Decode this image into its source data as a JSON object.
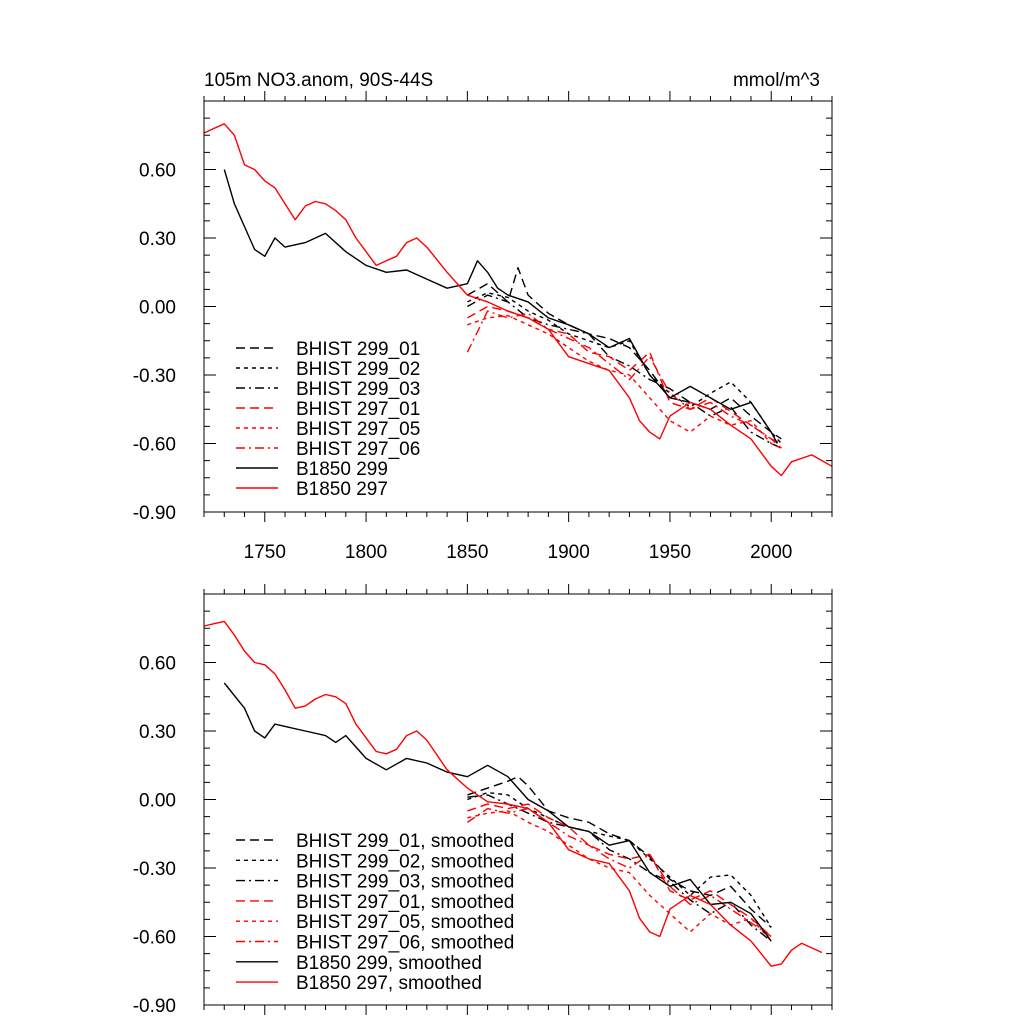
{
  "chart_data": [
    {
      "type": "line",
      "title": "105m NO3.anom, 90S-44S",
      "units": "mmol/m^3",
      "xlabel": "",
      "ylabel": "",
      "xlim": [
        1720,
        2030
      ],
      "ylim": [
        -0.9,
        0.9
      ],
      "xticks": [
        1750,
        1800,
        1850,
        1900,
        1950,
        2000
      ],
      "xtick_labels": [
        "1750",
        "1800",
        "1850",
        "1900",
        "1950",
        "2000"
      ],
      "yticks": [
        0.6,
        0.3,
        0.0,
        -0.3,
        -0.6,
        -0.9
      ],
      "ytick_labels": [
        "0.60",
        "0.30",
        "0.00",
        "-0.30",
        "-0.60",
        "-0.90"
      ],
      "legend_position": "lower-left",
      "series": [
        {
          "name": "BHIST 299_01",
          "color": "#000000",
          "dash": "long-dash",
          "x": [
            1850,
            1860,
            1870,
            1875,
            1880,
            1890,
            1900,
            1910,
            1920,
            1930,
            1940,
            1950,
            1960,
            1970,
            1980,
            1990,
            2000,
            2005
          ],
          "y": [
            0.05,
            0.1,
            0.02,
            0.17,
            0.05,
            -0.03,
            -0.08,
            -0.12,
            -0.14,
            -0.18,
            -0.28,
            -0.4,
            -0.42,
            -0.45,
            -0.4,
            -0.48,
            -0.55,
            -0.58
          ]
        },
        {
          "name": "BHIST 299_02",
          "color": "#000000",
          "dash": "short-dash",
          "x": [
            1850,
            1860,
            1870,
            1880,
            1890,
            1900,
            1910,
            1920,
            1930,
            1940,
            1950,
            1960,
            1970,
            1980,
            1990,
            2000,
            2005
          ],
          "y": [
            0.02,
            0.06,
            0.04,
            -0.02,
            -0.06,
            -0.12,
            -0.15,
            -0.18,
            -0.15,
            -0.3,
            -0.38,
            -0.44,
            -0.38,
            -0.33,
            -0.42,
            -0.55,
            -0.6
          ]
        },
        {
          "name": "BHIST 299_03",
          "color": "#000000",
          "dash": "dash-dot",
          "x": [
            1850,
            1860,
            1870,
            1880,
            1890,
            1900,
            1910,
            1920,
            1930,
            1940,
            1950,
            1960,
            1970,
            1980,
            1990,
            2000,
            2005
          ],
          "y": [
            0.0,
            0.05,
            0.02,
            -0.05,
            -0.08,
            -0.1,
            -0.12,
            -0.22,
            -0.26,
            -0.32,
            -0.36,
            -0.42,
            -0.48,
            -0.44,
            -0.55,
            -0.6,
            -0.62
          ]
        },
        {
          "name": "BHIST 297_01",
          "color": "#ff0000",
          "dash": "long-dash",
          "x": [
            1850,
            1860,
            1870,
            1880,
            1890,
            1900,
            1910,
            1920,
            1930,
            1940,
            1950,
            1960,
            1970,
            1980,
            1990,
            2000,
            2005
          ],
          "y": [
            -0.05,
            0.0,
            -0.02,
            -0.05,
            -0.1,
            -0.12,
            -0.2,
            -0.22,
            -0.28,
            -0.2,
            -0.42,
            -0.45,
            -0.4,
            -0.46,
            -0.52,
            -0.58,
            -0.62
          ]
        },
        {
          "name": "BHIST 297_05",
          "color": "#ff0000",
          "dash": "short-dash",
          "x": [
            1850,
            1860,
            1870,
            1880,
            1890,
            1900,
            1910,
            1920,
            1930,
            1940,
            1950,
            1960,
            1970,
            1980,
            1990,
            2000,
            2005
          ],
          "y": [
            -0.08,
            -0.05,
            -0.04,
            -0.08,
            -0.12,
            -0.18,
            -0.24,
            -0.28,
            -0.3,
            -0.4,
            -0.5,
            -0.55,
            -0.48,
            -0.52,
            -0.5,
            -0.6,
            -0.62
          ]
        },
        {
          "name": "BHIST 297_06",
          "color": "#ff0000",
          "dash": "dash-dot",
          "x": [
            1850,
            1860,
            1870,
            1880,
            1890,
            1900,
            1910,
            1920,
            1930,
            1940,
            1950,
            1960,
            1970,
            1980,
            1990,
            2000,
            2005
          ],
          "y": [
            -0.2,
            -0.02,
            -0.05,
            -0.03,
            -0.1,
            -0.14,
            -0.18,
            -0.25,
            -0.32,
            -0.22,
            -0.38,
            -0.45,
            -0.42,
            -0.48,
            -0.52,
            -0.58,
            -0.6
          ]
        },
        {
          "name": "B1850 299",
          "color": "#000000",
          "dash": "solid",
          "x": [
            1730,
            1735,
            1740,
            1745,
            1750,
            1755,
            1760,
            1770,
            1780,
            1790,
            1800,
            1810,
            1820,
            1830,
            1840,
            1850,
            1855,
            1860,
            1865,
            1870,
            1880,
            1890,
            1900,
            1910,
            1920,
            1930,
            1940,
            1950,
            1960,
            1970,
            1980,
            1990,
            2000,
            2003
          ],
          "y": [
            0.6,
            0.45,
            0.35,
            0.25,
            0.22,
            0.3,
            0.26,
            0.28,
            0.32,
            0.24,
            0.18,
            0.15,
            0.16,
            0.12,
            0.08,
            0.1,
            0.2,
            0.15,
            0.08,
            0.05,
            0.02,
            -0.05,
            -0.08,
            -0.12,
            -0.18,
            -0.14,
            -0.3,
            -0.4,
            -0.35,
            -0.4,
            -0.45,
            -0.42,
            -0.55,
            -0.6
          ]
        },
        {
          "name": "B1850 297",
          "color": "#ff0000",
          "dash": "solid",
          "x": [
            1720,
            1725,
            1730,
            1735,
            1740,
            1745,
            1750,
            1755,
            1760,
            1765,
            1770,
            1775,
            1780,
            1785,
            1790,
            1795,
            1800,
            1805,
            1810,
            1815,
            1820,
            1825,
            1830,
            1840,
            1850,
            1860,
            1870,
            1880,
            1890,
            1900,
            1910,
            1920,
            1930,
            1935,
            1940,
            1945,
            1950,
            1960,
            1970,
            1980,
            1990,
            2000,
            2005,
            2010,
            2020,
            2030
          ],
          "y": [
            0.76,
            0.78,
            0.8,
            0.75,
            0.62,
            0.6,
            0.55,
            0.52,
            0.45,
            0.38,
            0.44,
            0.46,
            0.45,
            0.42,
            0.38,
            0.3,
            0.24,
            0.18,
            0.2,
            0.22,
            0.28,
            0.3,
            0.26,
            0.15,
            0.05,
            0.02,
            -0.02,
            -0.05,
            -0.1,
            -0.22,
            -0.25,
            -0.28,
            -0.4,
            -0.5,
            -0.55,
            -0.58,
            -0.48,
            -0.42,
            -0.45,
            -0.52,
            -0.58,
            -0.7,
            -0.74,
            -0.68,
            -0.65,
            -0.7
          ]
        }
      ]
    },
    {
      "type": "line",
      "title": "",
      "units": "",
      "xlabel": "",
      "ylabel": "",
      "xlim": [
        1720,
        2030
      ],
      "ylim": [
        -0.9,
        0.9
      ],
      "xticks": [
        1750,
        1800,
        1850,
        1900,
        1950,
        2000
      ],
      "yticks": [
        0.6,
        0.3,
        0.0,
        -0.3,
        -0.6,
        -0.9
      ],
      "ytick_labels": [
        "0.60",
        "0.30",
        "0.00",
        "-0.30",
        "-0.60",
        "-0.90"
      ],
      "legend_position": "lower-left",
      "series": [
        {
          "name": "BHIST 299_01, smoothed",
          "color": "#000000",
          "dash": "long-dash",
          "x": [
            1850,
            1860,
            1870,
            1875,
            1880,
            1890,
            1900,
            1910,
            1920,
            1930,
            1940,
            1950,
            1960,
            1970,
            1980,
            1990,
            2000
          ],
          "y": [
            0.02,
            0.05,
            0.08,
            0.1,
            0.06,
            -0.05,
            -0.08,
            -0.1,
            -0.15,
            -0.18,
            -0.25,
            -0.35,
            -0.4,
            -0.42,
            -0.38,
            -0.48,
            -0.56
          ]
        },
        {
          "name": "BHIST 299_02, smoothed",
          "color": "#000000",
          "dash": "short-dash",
          "x": [
            1850,
            1860,
            1870,
            1880,
            1890,
            1900,
            1910,
            1920,
            1930,
            1940,
            1950,
            1960,
            1970,
            1980,
            1990,
            2000
          ],
          "y": [
            0.0,
            0.03,
            0.02,
            -0.04,
            -0.08,
            -0.12,
            -0.14,
            -0.16,
            -0.18,
            -0.26,
            -0.34,
            -0.42,
            -0.34,
            -0.33,
            -0.42,
            -0.56
          ]
        },
        {
          "name": "BHIST 299_03, smoothed",
          "color": "#000000",
          "dash": "dash-dot",
          "x": [
            1850,
            1860,
            1870,
            1880,
            1890,
            1900,
            1910,
            1920,
            1930,
            1940,
            1950,
            1960,
            1970,
            1980,
            1990,
            2000
          ],
          "y": [
            0.01,
            0.02,
            -0.02,
            -0.06,
            -0.1,
            -0.12,
            -0.14,
            -0.22,
            -0.26,
            -0.32,
            -0.36,
            -0.44,
            -0.5,
            -0.45,
            -0.55,
            -0.62
          ]
        },
        {
          "name": "BHIST 297_01, smoothed",
          "color": "#ff0000",
          "dash": "long-dash",
          "x": [
            1850,
            1860,
            1870,
            1880,
            1890,
            1900,
            1910,
            1920,
            1930,
            1940,
            1950,
            1960,
            1970,
            1980,
            1990,
            2000
          ],
          "y": [
            -0.05,
            -0.02,
            -0.04,
            -0.02,
            -0.08,
            -0.12,
            -0.2,
            -0.24,
            -0.26,
            -0.24,
            -0.4,
            -0.44,
            -0.4,
            -0.46,
            -0.52,
            -0.6
          ]
        },
        {
          "name": "BHIST 297_05, smoothed",
          "color": "#ff0000",
          "dash": "short-dash",
          "x": [
            1850,
            1860,
            1870,
            1880,
            1890,
            1900,
            1910,
            1920,
            1930,
            1940,
            1950,
            1960,
            1970,
            1980,
            1990,
            2000
          ],
          "y": [
            -0.08,
            -0.06,
            -0.05,
            -0.1,
            -0.14,
            -0.2,
            -0.26,
            -0.3,
            -0.32,
            -0.42,
            -0.5,
            -0.58,
            -0.5,
            -0.55,
            -0.52,
            -0.62
          ]
        },
        {
          "name": "BHIST 297_06, smoothed",
          "color": "#ff0000",
          "dash": "dash-dot",
          "x": [
            1850,
            1860,
            1870,
            1880,
            1890,
            1900,
            1910,
            1920,
            1930,
            1940,
            1950,
            1960,
            1970,
            1980,
            1990,
            2000
          ],
          "y": [
            -0.1,
            -0.04,
            -0.06,
            -0.04,
            -0.1,
            -0.16,
            -0.2,
            -0.26,
            -0.3,
            -0.24,
            -0.38,
            -0.46,
            -0.42,
            -0.48,
            -0.54,
            -0.6
          ]
        },
        {
          "name": "B1850 299, smoothed",
          "color": "#000000",
          "dash": "solid",
          "x": [
            1730,
            1740,
            1745,
            1750,
            1755,
            1760,
            1770,
            1780,
            1785,
            1790,
            1800,
            1810,
            1820,
            1830,
            1840,
            1850,
            1860,
            1870,
            1880,
            1890,
            1900,
            1910,
            1920,
            1930,
            1940,
            1950,
            1960,
            1970,
            1980,
            1990,
            2000
          ],
          "y": [
            0.51,
            0.4,
            0.3,
            0.27,
            0.33,
            0.32,
            0.3,
            0.28,
            0.25,
            0.28,
            0.18,
            0.13,
            0.18,
            0.16,
            0.12,
            0.1,
            0.15,
            0.1,
            0.0,
            -0.05,
            -0.12,
            -0.14,
            -0.2,
            -0.18,
            -0.32,
            -0.38,
            -0.35,
            -0.46,
            -0.45,
            -0.5,
            -0.62
          ]
        },
        {
          "name": "B1850 297, smoothed",
          "color": "#ff0000",
          "dash": "solid",
          "x": [
            1720,
            1725,
            1730,
            1735,
            1740,
            1745,
            1750,
            1755,
            1760,
            1765,
            1770,
            1775,
            1780,
            1785,
            1790,
            1795,
            1800,
            1805,
            1810,
            1815,
            1820,
            1825,
            1830,
            1840,
            1850,
            1860,
            1870,
            1880,
            1890,
            1900,
            1910,
            1920,
            1930,
            1935,
            1940,
            1945,
            1950,
            1960,
            1970,
            1980,
            1990,
            2000,
            2005,
            2010,
            2015,
            2020,
            2025
          ],
          "y": [
            0.76,
            0.77,
            0.78,
            0.72,
            0.65,
            0.6,
            0.59,
            0.55,
            0.48,
            0.4,
            0.41,
            0.44,
            0.46,
            0.45,
            0.42,
            0.33,
            0.27,
            0.21,
            0.2,
            0.22,
            0.28,
            0.3,
            0.26,
            0.13,
            0.05,
            -0.01,
            -0.02,
            -0.04,
            -0.1,
            -0.22,
            -0.26,
            -0.28,
            -0.4,
            -0.52,
            -0.58,
            -0.6,
            -0.48,
            -0.42,
            -0.46,
            -0.55,
            -0.62,
            -0.73,
            -0.72,
            -0.66,
            -0.63,
            -0.65,
            -0.67
          ]
        }
      ]
    }
  ]
}
